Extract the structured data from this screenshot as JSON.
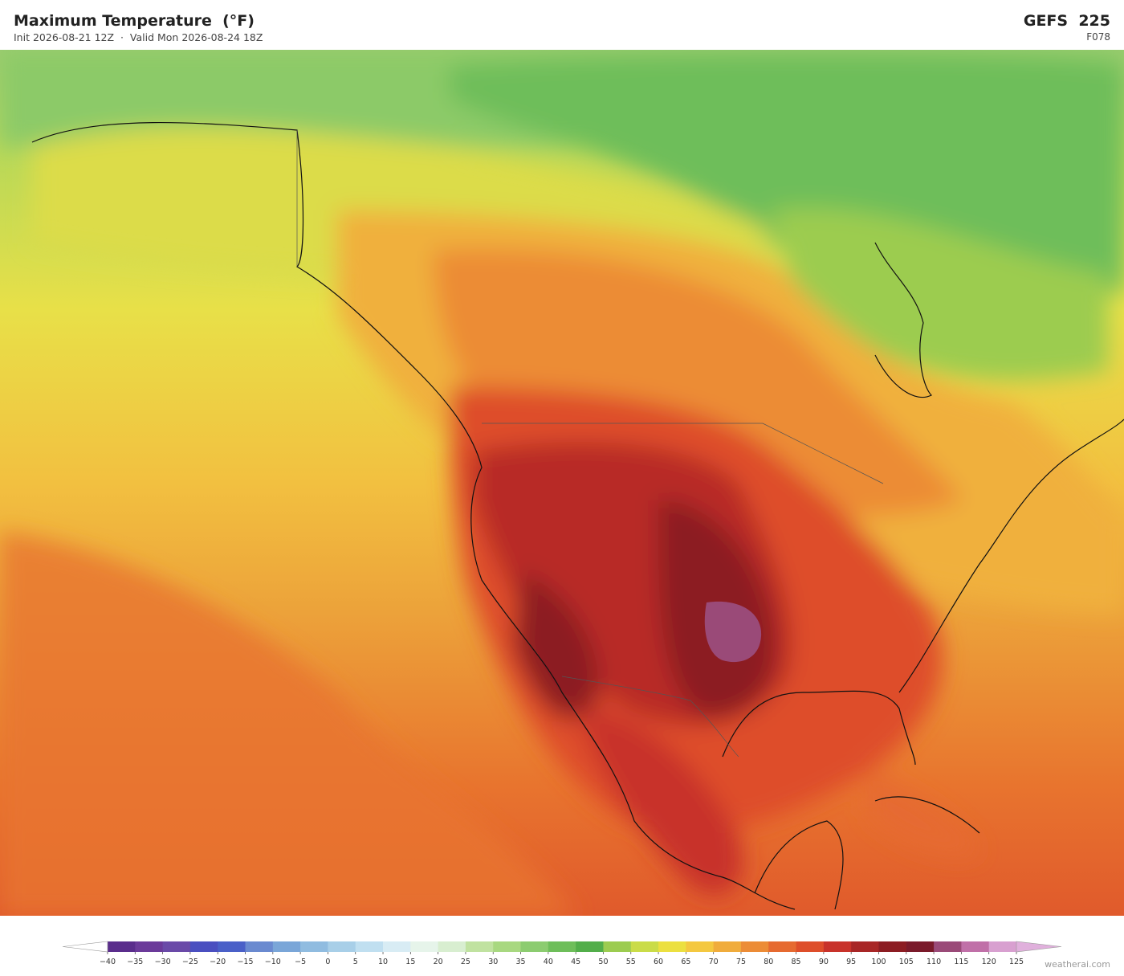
{
  "header": {
    "title": "Maximum Temperature  (°F)",
    "subtitle": "Init 2026-08-21 12Z  ·  Valid Mon 2026-08-24 18Z",
    "model": "GEFS  225",
    "step": "F078"
  },
  "colorbar": {
    "under_color": "#ffffff",
    "over_color": "#e0b0dc",
    "colors": [
      "#5a2d8c",
      "#6b3a9a",
      "#6a4aa8",
      "#4a4fc0",
      "#4a60c8",
      "#6a8ad0",
      "#7aa6d8",
      "#90bce0",
      "#a8cfe8",
      "#c0dff0",
      "#d8ecf4",
      "#e6f4ea",
      "#d8eed0",
      "#c0e2a0",
      "#a8d880",
      "#8ccc70",
      "#6ebe5a",
      "#52ae4a",
      "#9ccc50",
      "#cadc48",
      "#ece040",
      "#f4c840",
      "#f0ac3c",
      "#ec8c36",
      "#e66a30",
      "#de4e2a",
      "#c8322a",
      "#a82626",
      "#8c1c22",
      "#7a1a2a",
      "#9a4a78",
      "#c070a8",
      "#d8a0d0"
    ],
    "ticks": [
      {
        "value": -40,
        "label": "−40"
      },
      {
        "value": -35,
        "label": "−35"
      },
      {
        "value": -30,
        "label": "−30"
      },
      {
        "value": -25,
        "label": "−25"
      },
      {
        "value": -20,
        "label": "−20"
      },
      {
        "value": -15,
        "label": "−15"
      },
      {
        "value": -10,
        "label": "−10"
      },
      {
        "value": -5,
        "label": "−5"
      },
      0,
      5,
      10,
      15,
      20,
      25,
      30,
      35,
      40,
      45,
      50,
      55,
      60,
      65,
      70,
      75,
      80,
      85,
      90,
      95,
      100,
      105,
      110,
      115,
      120,
      125
    ]
  },
  "footer": {
    "credit": "weatherai.com"
  }
}
